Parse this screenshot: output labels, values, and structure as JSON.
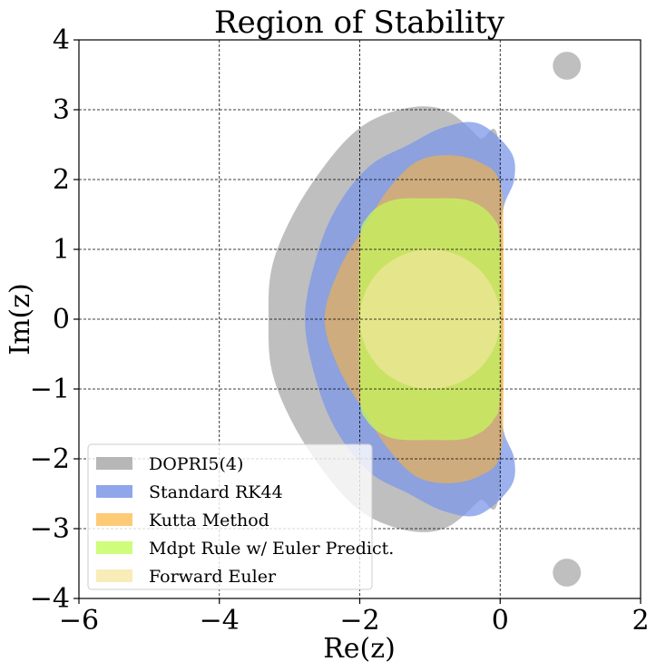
{
  "chart_data": {
    "type": "area",
    "title": "Region of Stability",
    "xlabel": "Re(z)",
    "ylabel": "Im(z)",
    "xlim": [
      -6,
      2
    ],
    "ylim": [
      -4,
      4
    ],
    "xticks": [
      -6,
      -4,
      -2,
      0,
      2
    ],
    "yticks": [
      -4,
      -3,
      -2,
      -1,
      0,
      1,
      2,
      3,
      4
    ],
    "xtick_labels": [
      "−6",
      "−4",
      "−2",
      "0",
      "2"
    ],
    "ytick_labels": [
      "−4",
      "−3",
      "−2",
      "−1",
      "0",
      "1",
      "2",
      "3",
      "4"
    ],
    "grid": true,
    "legend_position": "lower-left",
    "series": [
      {
        "name": "DOPRI5(4)",
        "color": "#aaaaaa",
        "opacity": 0.75,
        "boundary": [
          [
            0.0,
            2.3
          ],
          [
            -0.3,
            2.6
          ],
          [
            -0.7,
            2.95
          ],
          [
            -1.1,
            3.05
          ],
          [
            -1.6,
            2.95
          ],
          [
            -2.05,
            2.7
          ],
          [
            -2.5,
            2.2
          ],
          [
            -2.95,
            1.5
          ],
          [
            -3.25,
            0.75
          ],
          [
            -3.3,
            0.0
          ],
          [
            -3.25,
            -0.75
          ],
          [
            -2.95,
            -1.5
          ],
          [
            -2.5,
            -2.2
          ],
          [
            -2.05,
            -2.7
          ],
          [
            -1.6,
            -2.95
          ],
          [
            -1.1,
            -3.05
          ],
          [
            -0.7,
            -2.95
          ],
          [
            -0.3,
            -2.6
          ],
          [
            0.0,
            -2.3
          ]
        ],
        "islands": [
          {
            "center": [
              0.95,
              3.63
            ],
            "radius": 0.2
          },
          {
            "center": [
              0.95,
              -3.63
            ],
            "radius": 0.2
          }
        ]
      },
      {
        "name": "Standard RK44",
        "color": "#7b97e8",
        "opacity": 0.75,
        "boundary": [
          [
            0.15,
            2.4
          ],
          [
            0.2,
            2.0
          ],
          [
            0.05,
            1.6
          ],
          [
            0.0,
            1.0
          ],
          [
            0.0,
            -1.0
          ],
          [
            0.05,
            -1.6
          ],
          [
            0.2,
            -2.0
          ],
          [
            0.15,
            -2.4
          ],
          [
            -0.3,
            -2.8
          ],
          [
            -0.8,
            -2.75
          ],
          [
            -1.3,
            -2.5
          ],
          [
            -1.85,
            -2.2
          ],
          [
            -2.3,
            -1.65
          ],
          [
            -2.6,
            -0.95
          ],
          [
            -2.78,
            0.0
          ],
          [
            -2.6,
            0.95
          ],
          [
            -2.3,
            1.65
          ],
          [
            -1.85,
            2.2
          ],
          [
            -1.3,
            2.5
          ],
          [
            -0.8,
            2.75
          ],
          [
            -0.3,
            2.8
          ]
        ]
      },
      {
        "name": "Kutta Method",
        "color": "#fcb43c",
        "opacity": 0.6,
        "boundary": [
          [
            0.0,
            1.95
          ],
          [
            -0.3,
            2.25
          ],
          [
            -0.75,
            2.35
          ],
          [
            -1.2,
            2.25
          ],
          [
            -1.6,
            1.85
          ],
          [
            -1.95,
            1.3
          ],
          [
            -2.3,
            0.7
          ],
          [
            -2.5,
            0.0
          ],
          [
            -2.3,
            -0.7
          ],
          [
            -1.95,
            -1.3
          ],
          [
            -1.6,
            -1.85
          ],
          [
            -1.2,
            -2.25
          ],
          [
            -0.75,
            -2.35
          ],
          [
            -0.3,
            -2.25
          ],
          [
            0.0,
            -1.95
          ],
          [
            0.05,
            -1.0
          ],
          [
            0.05,
            1.0
          ]
        ]
      },
      {
        "name": "Mdpt Rule w/ Euler Predict.",
        "color": "#c4fb5a",
        "opacity": 0.7,
        "boundary": [
          [
            0.0,
            1.0
          ],
          [
            -0.1,
            1.45
          ],
          [
            -0.45,
            1.7
          ],
          [
            -1.0,
            1.73
          ],
          [
            -1.55,
            1.7
          ],
          [
            -1.9,
            1.45
          ],
          [
            -2.0,
            1.0
          ],
          [
            -2.0,
            -1.0
          ],
          [
            -1.9,
            -1.45
          ],
          [
            -1.55,
            -1.7
          ],
          [
            -1.0,
            -1.73
          ],
          [
            -0.45,
            -1.7
          ],
          [
            -0.1,
            -1.45
          ],
          [
            0.0,
            -1.0
          ]
        ]
      },
      {
        "name": "Forward Euler",
        "color": "#f5e6a0",
        "opacity": 0.65,
        "circle": {
          "center": [
            -1.0,
            0.0
          ],
          "radius": 1.0
        }
      }
    ]
  }
}
